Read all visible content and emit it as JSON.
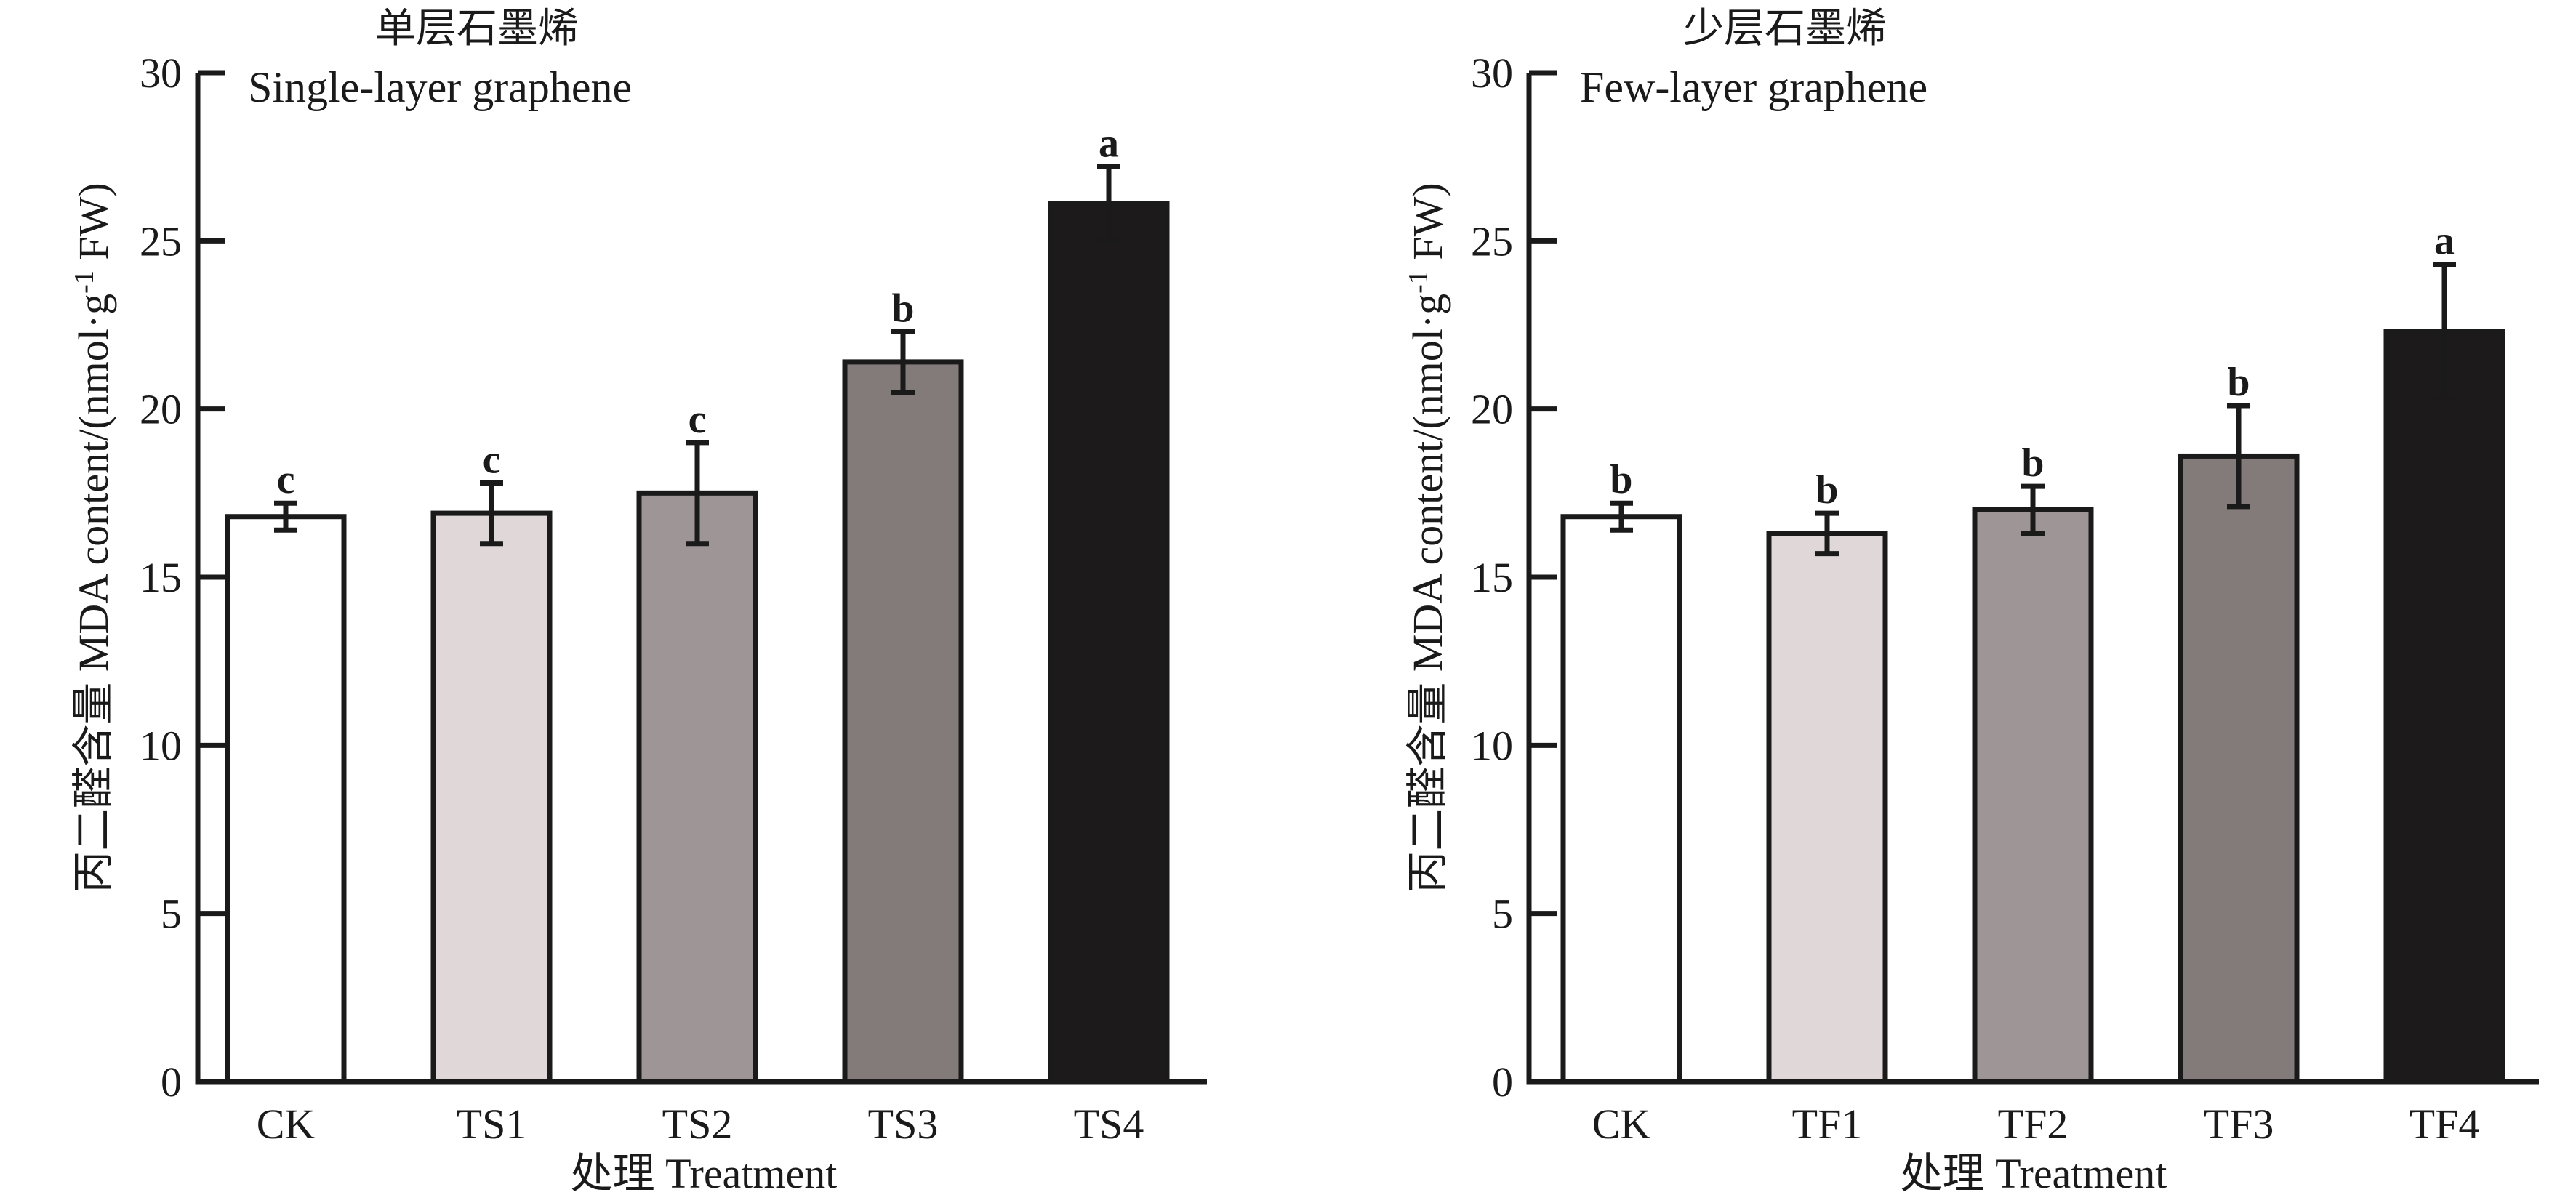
{
  "charts": [
    {
      "chinese_title": "单层石墨烯",
      "english_title": "Single-layer graphene",
      "ylabel_cn": "丙二醛含量 MDA content/(nmol·g",
      "ylabel_sup": "-1",
      "ylabel_end": " FW)",
      "xlabel": "处理 Treatment"
    },
    {
      "chinese_title": "少层石墨烯",
      "english_title": "Few-layer graphene",
      "ylabel_cn": "丙二醛含量 MDA content/(nmol·g",
      "ylabel_sup": "-1",
      "ylabel_end": " FW)",
      "xlabel": "处理 Treatment"
    }
  ],
  "chart_data": [
    {
      "type": "bar",
      "title": "单层石墨烯 Single-layer graphene",
      "xlabel": "处理 Treatment",
      "ylabel": "丙二醛含量 MDA content/(nmol·g-1 FW)",
      "ylim": [
        0,
        30
      ],
      "yticks": [
        0,
        5,
        10,
        15,
        20,
        25,
        30
      ],
      "categories": [
        "CK",
        "TS1",
        "TS2",
        "TS3",
        "TS4"
      ],
      "values": [
        16.8,
        16.9,
        17.5,
        21.4,
        26.1
      ],
      "errors": [
        0.4,
        0.9,
        1.5,
        0.9,
        1.1
      ],
      "significance": [
        "c",
        "c",
        "c",
        "b",
        "a"
      ],
      "colors": [
        "#ffffff",
        "#e0d8d8",
        "#9e9596",
        "#837a7a",
        "#1c1a1a"
      ]
    },
    {
      "type": "bar",
      "title": "少层石墨烯 Few-layer graphene",
      "xlabel": "处理 Treatment",
      "ylabel": "丙二醛含量 MDA content/(nmol·g-1 FW)",
      "ylim": [
        0,
        30
      ],
      "yticks": [
        0,
        5,
        10,
        15,
        20,
        25,
        30
      ],
      "categories": [
        "CK",
        "TF1",
        "TF2",
        "TF3",
        "TF4"
      ],
      "values": [
        16.8,
        16.3,
        17.0,
        18.6,
        22.3
      ],
      "errors": [
        0.4,
        0.6,
        0.7,
        1.5,
        2.0
      ],
      "significance": [
        "b",
        "b",
        "b",
        "b",
        "a"
      ],
      "colors": [
        "#ffffff",
        "#e0d8d8",
        "#9e9596",
        "#837a7a",
        "#1c1a1a"
      ]
    }
  ]
}
